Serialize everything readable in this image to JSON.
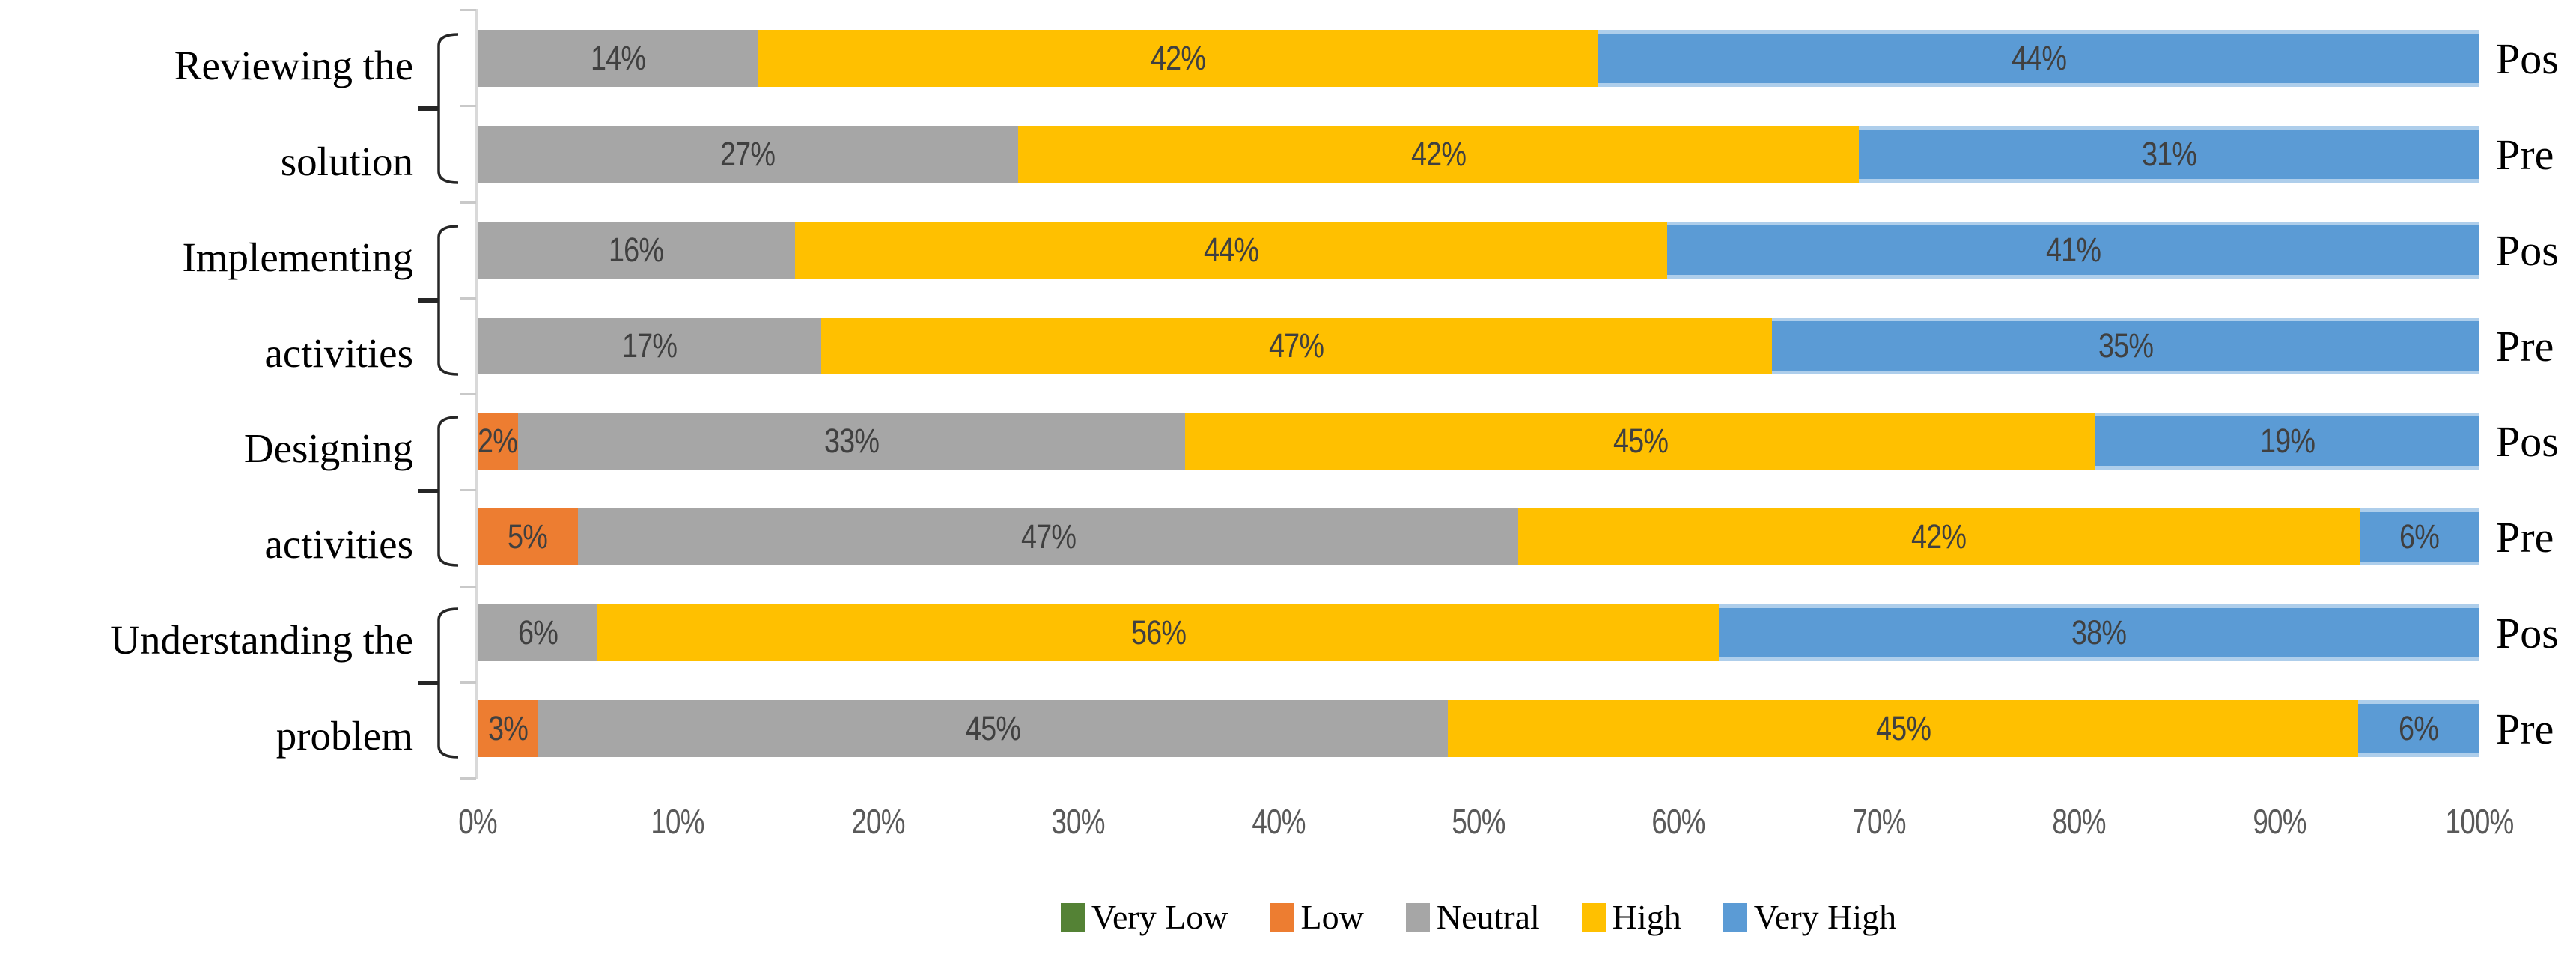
{
  "chart_data": {
    "type": "bar",
    "orientation": "horizontal",
    "stacked": true,
    "value_unit": "percent",
    "data_label_format": "{value}%",
    "x_axis": {
      "min": 0,
      "max": 100,
      "tick_labels": [
        "0%",
        "10%",
        "20%",
        "30%",
        "40%",
        "50%",
        "60%",
        "70%",
        "80%",
        "90%",
        "100%"
      ]
    },
    "series_order": [
      "Very Low",
      "Low",
      "Neutral",
      "High",
      "Very High"
    ],
    "series_colors": {
      "Very Low": "#548235",
      "Low": "#ED7D31",
      "Neutral": "#A6A6A6",
      "High": "#FFC000",
      "Very High": "#5B9BD5"
    },
    "legend": {
      "position": "bottom",
      "entries": [
        {
          "label": "Very Low",
          "color": "#548235"
        },
        {
          "label": "Low",
          "color": "#ED7D31"
        },
        {
          "label": "Neutral",
          "color": "#A6A6A6"
        },
        {
          "label": "High",
          "color": "#FFC000"
        },
        {
          "label": "Very High",
          "color": "#5B9BD5"
        }
      ]
    },
    "groups": [
      {
        "category": "Reviewing the solution",
        "label_lines": [
          "Reviewing the",
          "solution"
        ],
        "bars": [
          {
            "label": "Pos",
            "values": {
              "Very Low": 0,
              "Low": 0,
              "Neutral": 14,
              "High": 42,
              "Very High": 44
            }
          },
          {
            "label": "Pre",
            "values": {
              "Very Low": 0,
              "Low": 0,
              "Neutral": 27,
              "High": 42,
              "Very High": 31
            }
          }
        ]
      },
      {
        "category": "Implementing activities",
        "label_lines": [
          "Implementing",
          "activities"
        ],
        "bars": [
          {
            "label": "Pos",
            "values": {
              "Very Low": 0,
              "Low": 0,
              "Neutral": 16,
              "High": 44,
              "Very High": 41
            }
          },
          {
            "label": "Pre",
            "values": {
              "Very Low": 0,
              "Low": 0,
              "Neutral": 17,
              "High": 47,
              "Very High": 35
            }
          }
        ]
      },
      {
        "category": "Designing activities",
        "label_lines": [
          "Designing",
          "activities"
        ],
        "bars": [
          {
            "label": "Pos",
            "values": {
              "Very Low": 0,
              "Low": 2,
              "Neutral": 33,
              "High": 45,
              "Very High": 19
            }
          },
          {
            "label": "Pre",
            "values": {
              "Very Low": 0,
              "Low": 5,
              "Neutral": 47,
              "High": 42,
              "Very High": 6
            }
          }
        ]
      },
      {
        "category": "Understanding the problem",
        "label_lines": [
          "Understanding the",
          "problem"
        ],
        "bars": [
          {
            "label": "Pos",
            "values": {
              "Very Low": 0,
              "Low": 0,
              "Neutral": 6,
              "High": 56,
              "Very High": 38
            }
          },
          {
            "label": "Pre",
            "values": {
              "Very Low": 0,
              "Low": 3,
              "Neutral": 45,
              "High": 45,
              "Very High": 6
            }
          }
        ]
      }
    ],
    "colors": {
      "data_label": "#404040",
      "axis_label": "#595959",
      "axis_line": "#D9D9D9",
      "tick_mark": "#C9C9C9",
      "bracket": "#262626"
    }
  }
}
